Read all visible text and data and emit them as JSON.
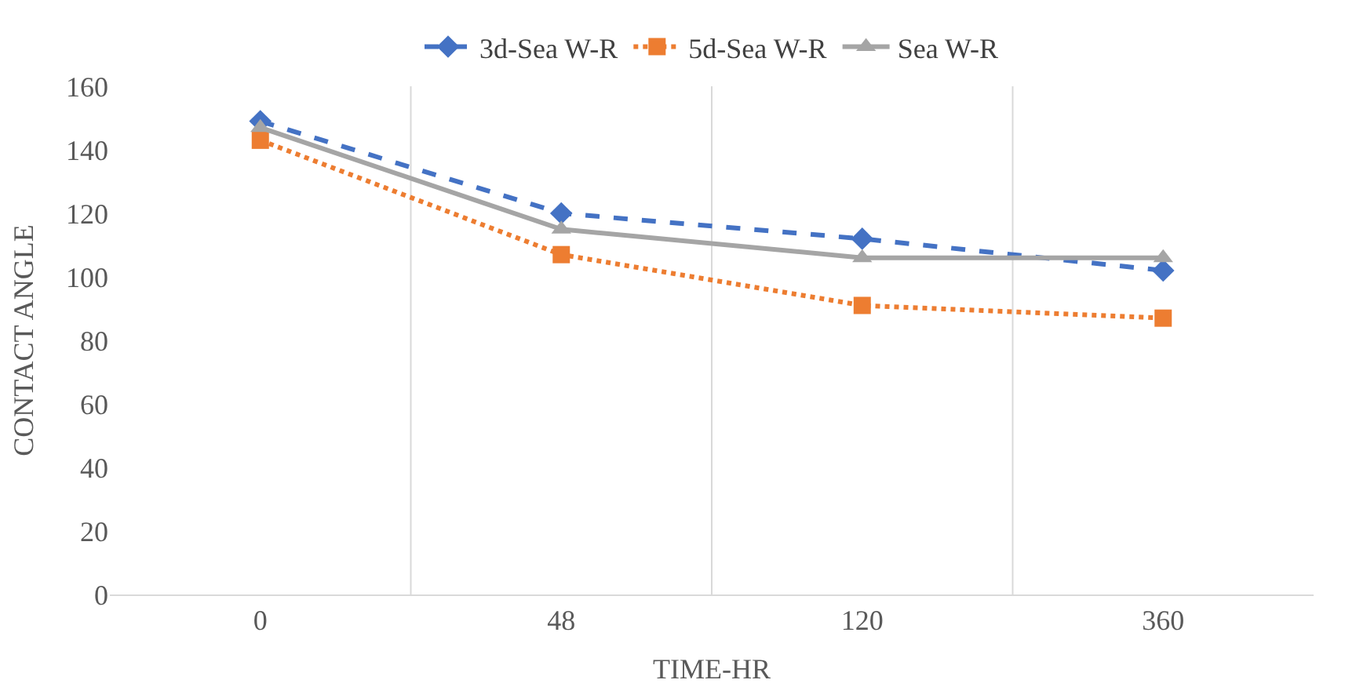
{
  "chart_data": {
    "type": "line",
    "xlabel": "TIME-HR",
    "ylabel": "CONTACT ANGLE",
    "categories": [
      "0",
      "48",
      "120",
      "360"
    ],
    "ylim": [
      0,
      160
    ],
    "yticks": [
      0,
      20,
      40,
      60,
      80,
      100,
      120,
      140,
      160
    ],
    "grid": "x",
    "legend": "top",
    "series": [
      {
        "name": "3d-Sea W-R",
        "color": "#4472c4",
        "marker": "diamond",
        "line_style": "dashed",
        "values": [
          149,
          120,
          112,
          102
        ]
      },
      {
        "name": "5d-Sea W-R",
        "color": "#ed7d31",
        "marker": "square",
        "line_style": "dotted",
        "values": [
          143,
          107,
          91,
          87
        ]
      },
      {
        "name": "Sea W-R",
        "color": "#a5a5a5",
        "marker": "triangle",
        "line_style": "solid",
        "values": [
          147,
          115,
          106,
          106
        ]
      }
    ]
  }
}
